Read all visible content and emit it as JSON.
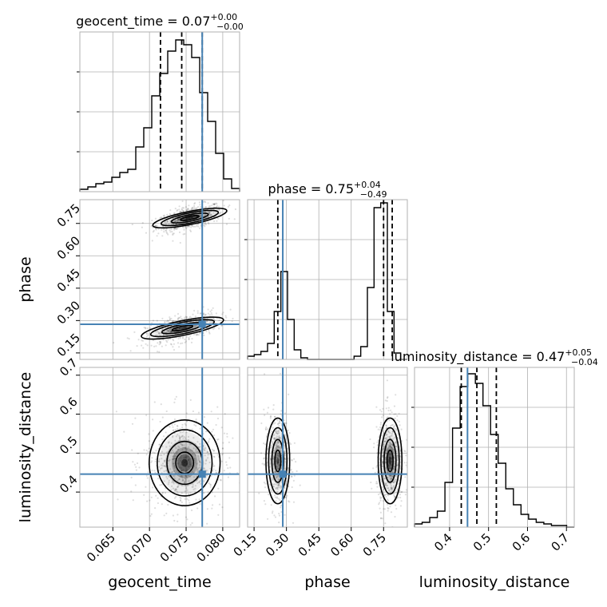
{
  "chart_data": {
    "type": "corner",
    "parameters": [
      {
        "name": "geocent_time",
        "xlabel": "geocent_time",
        "title_main": "geocent_time = 0.07",
        "title_sup": "+0.00",
        "title_sub": "−0.00",
        "range": [
          0.0605,
          0.0823
        ],
        "ticks": [
          "0.065",
          "0.070",
          "0.075",
          "0.080"
        ],
        "tick_values": [
          0.065,
          0.07,
          0.075,
          0.08
        ],
        "quantiles": [
          0.0715,
          0.0744,
          0.0772
        ],
        "truth": 0.0772,
        "hist": [
          0.015,
          0.03,
          0.05,
          0.06,
          0.09,
          0.12,
          0.14,
          0.28,
          0.4,
          0.6,
          0.74,
          0.88,
          0.95,
          0.92,
          0.84,
          0.62,
          0.44,
          0.24,
          0.08,
          0.02
        ]
      },
      {
        "name": "phase",
        "xlabel": "phase",
        "ylabel": "phase",
        "title_main": "phase = 0.75",
        "title_sup": "+0.04",
        "title_sub": "−0.49",
        "range": [
          0.12,
          0.86
        ],
        "ticks": [
          "0.15",
          "0.30",
          "0.45",
          "0.60",
          "0.75"
        ],
        "tick_values": [
          0.15,
          0.3,
          0.45,
          0.6,
          0.75
        ],
        "quantiles": [
          0.26,
          0.75,
          0.79
        ],
        "truth": 0.283,
        "hist": [
          0.02,
          0.03,
          0.05,
          0.1,
          0.3,
          0.55,
          0.25,
          0.06,
          0.01,
          0.0,
          0.0,
          0.0,
          0.0,
          0.0,
          0.0,
          0.0,
          0.02,
          0.08,
          0.45,
          0.95,
          0.98,
          0.3,
          0.04,
          0.0
        ]
      },
      {
        "name": "luminosity_distance",
        "xlabel": "luminosity_distance",
        "ylabel": "luminosity_distance",
        "title_main": "luminosity_distance = 0.47",
        "title_sup": "+0.05",
        "title_sub": "−0.04",
        "range": [
          0.31,
          0.72
        ],
        "ticks": [
          "0.4",
          "0.5",
          "0.6",
          "0.7"
        ],
        "tick_values": [
          0.4,
          0.5,
          0.6,
          0.7
        ],
        "quantiles": [
          0.43,
          0.47,
          0.52
        ],
        "truth": 0.446,
        "hist": [
          0.02,
          0.03,
          0.06,
          0.1,
          0.28,
          0.62,
          0.88,
          0.96,
          0.9,
          0.76,
          0.58,
          0.4,
          0.24,
          0.14,
          0.08,
          0.05,
          0.03,
          0.02,
          0.01,
          0.01,
          0.0
        ]
      }
    ],
    "y_ticks": {
      "phase": [
        "0.15",
        "0.30",
        "0.45",
        "0.60",
        "0.75"
      ],
      "luminosity_distance": [
        "0.4",
        "0.5",
        "0.6",
        "0.7"
      ]
    },
    "truth_color": "#4682b4",
    "hist_color": "#000000",
    "joint": [
      {
        "x": "geocent_time",
        "y": "phase",
        "modes": [
          {
            "cx": 0.0755,
            "cy": 0.775,
            "sx": 0.0018,
            "sy": 0.025,
            "rho": 0.55,
            "w": 1.0
          },
          {
            "cx": 0.0745,
            "cy": 0.265,
            "sx": 0.002,
            "sy": 0.028,
            "rho": 0.55,
            "w": 0.9
          }
        ]
      },
      {
        "x": "geocent_time",
        "y": "luminosity_distance",
        "modes": [
          {
            "cx": 0.0748,
            "cy": 0.475,
            "sx": 0.0022,
            "sy": 0.05,
            "rho": 0.0,
            "w": 1.0
          }
        ]
      },
      {
        "x": "phase",
        "y": "luminosity_distance",
        "modes": [
          {
            "cx": 0.26,
            "cy": 0.48,
            "sx": 0.025,
            "sy": 0.05,
            "rho": 0.0,
            "w": 0.75
          },
          {
            "cx": 0.78,
            "cy": 0.48,
            "sx": 0.025,
            "sy": 0.05,
            "rho": 0.0,
            "w": 1.0
          }
        ]
      }
    ]
  }
}
